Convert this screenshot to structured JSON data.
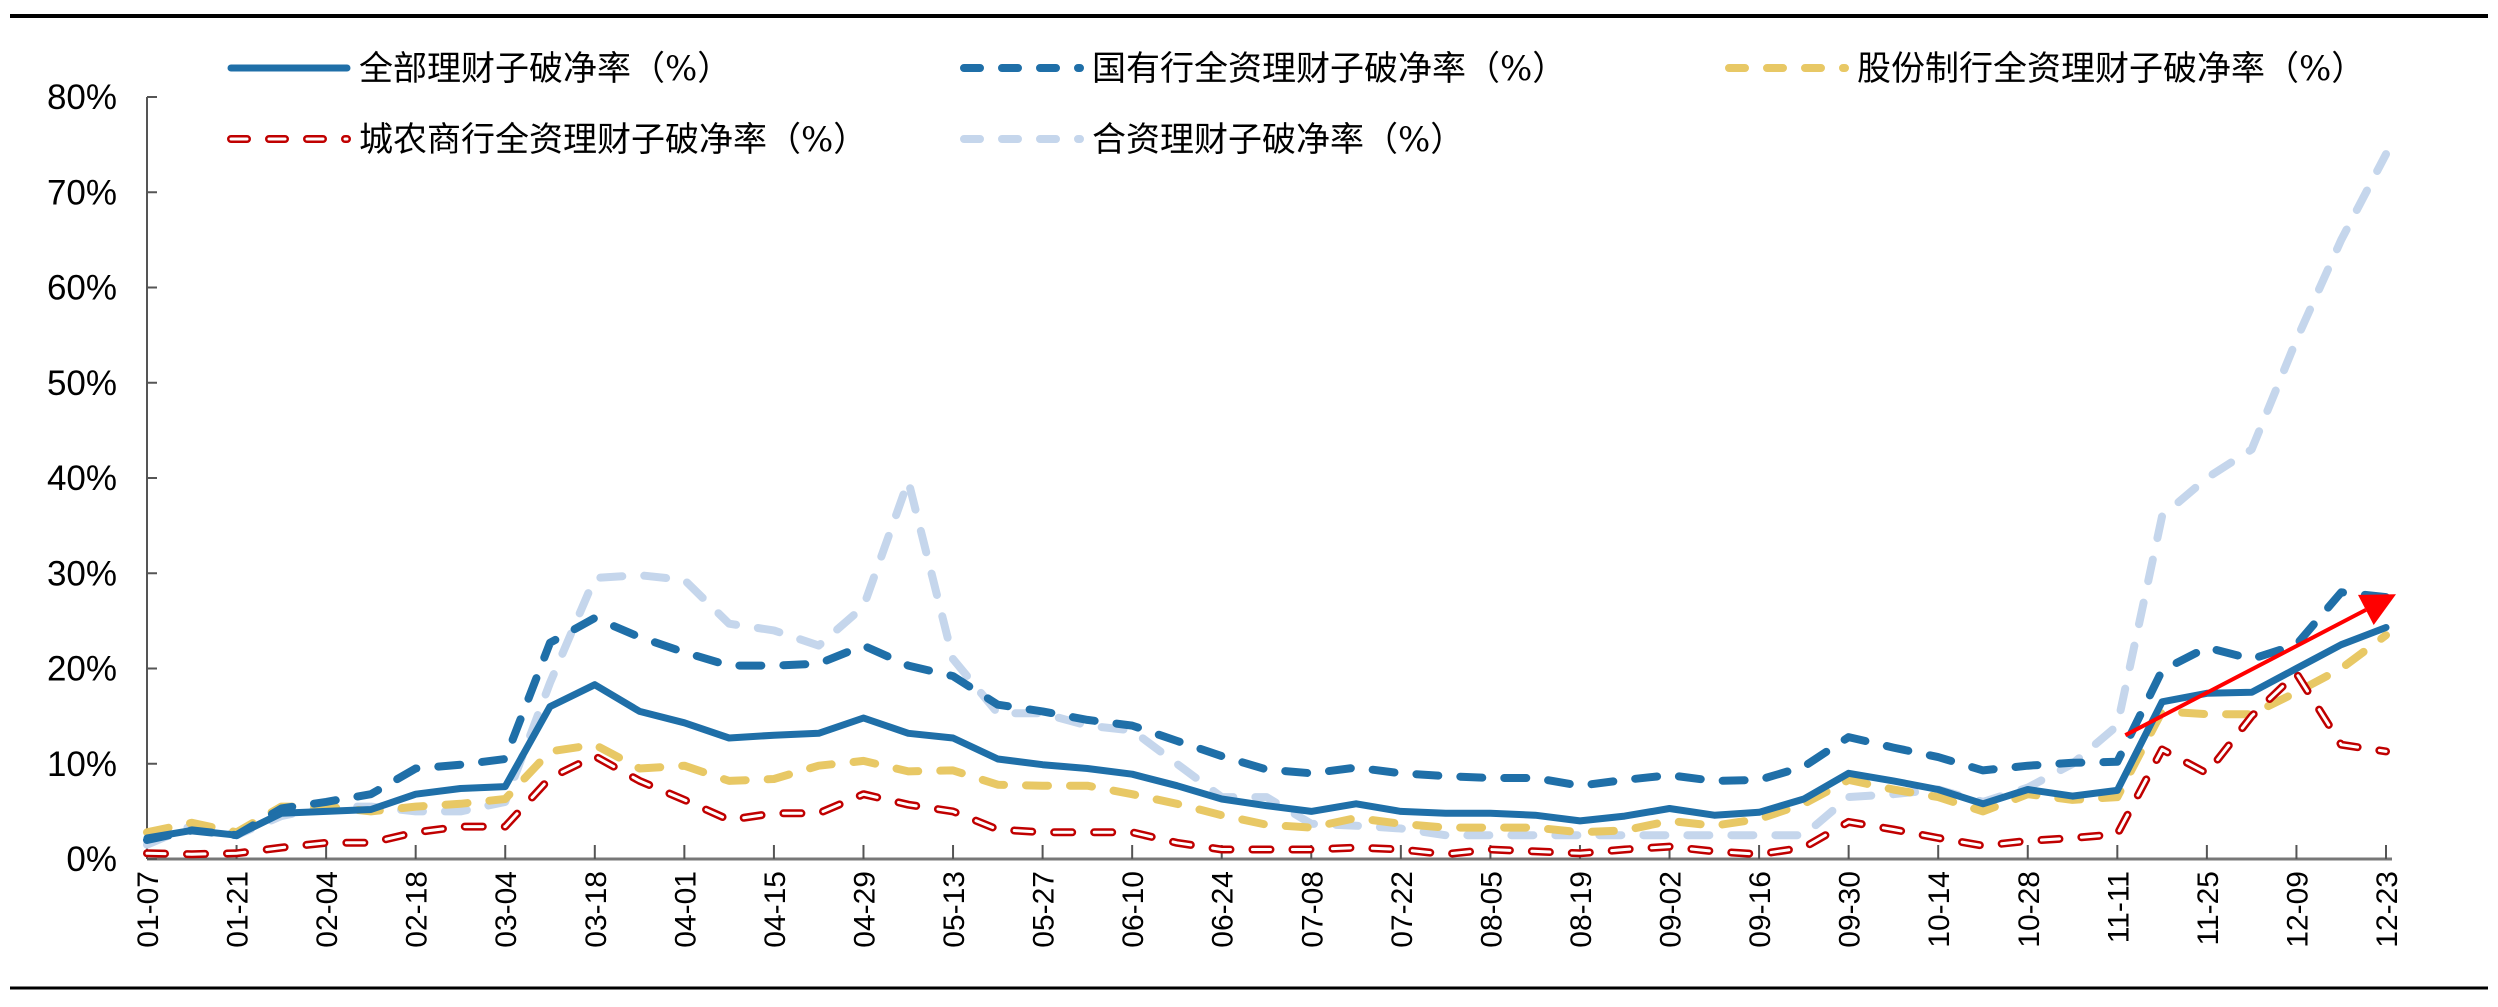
{
  "chart_data": {
    "type": "line",
    "title": "",
    "xlabel": "",
    "ylabel": "",
    "ylim": [
      0,
      80
    ],
    "y_ticks": [
      "0%",
      "10%",
      "20%",
      "30%",
      "40%",
      "50%",
      "60%",
      "70%",
      "80%"
    ],
    "grid": false,
    "legend_position": "top",
    "x": [
      "01-07",
      "01-14",
      "01-21",
      "01-28",
      "02-04",
      "02-11",
      "02-18",
      "02-25",
      "03-04",
      "03-11",
      "03-18",
      "03-25",
      "04-01",
      "04-08",
      "04-15",
      "04-22",
      "04-29",
      "05-06",
      "05-13",
      "05-20",
      "05-27",
      "06-03",
      "06-10",
      "06-17",
      "06-24",
      "07-01",
      "07-08",
      "07-15",
      "07-22",
      "07-29",
      "08-05",
      "08-12",
      "08-19",
      "08-26",
      "09-02",
      "09-09",
      "09-16",
      "09-23",
      "09-30",
      "10-07",
      "10-14",
      "10-21",
      "10-28",
      "11-04",
      "11-11",
      "11-18",
      "11-25",
      "12-02",
      "12-09",
      "12-16",
      "12-23"
    ],
    "x_tick_labels": [
      "01-07",
      "01-21",
      "02-04",
      "02-18",
      "03-04",
      "03-18",
      "04-01",
      "04-15",
      "04-29",
      "05-13",
      "05-27",
      "06-10",
      "06-24",
      "07-08",
      "07-22",
      "08-05",
      "08-19",
      "09-02",
      "09-16",
      "09-30",
      "10-14",
      "10-28",
      "11-11",
      "11-25",
      "12-09",
      "12-23"
    ],
    "series": [
      {
        "name": "全部理财子破净率（%）",
        "color": "#1F6FA8",
        "style": "solid",
        "values": [
          2.2,
          3.0,
          2.5,
          4.8,
          5.0,
          5.2,
          6.8,
          7.4,
          7.6,
          16.0,
          18.3,
          15.5,
          14.3,
          12.7,
          13.0,
          13.2,
          14.8,
          13.2,
          12.7,
          10.5,
          9.9,
          9.5,
          8.9,
          7.7,
          6.3,
          5.6,
          5.0,
          5.8,
          5.0,
          4.8,
          4.8,
          4.6,
          4.0,
          4.5,
          5.3,
          4.6,
          4.9,
          6.3,
          9.0,
          8.2,
          7.3,
          5.8,
          7.3,
          6.6,
          7.2,
          16.5,
          17.4,
          17.5,
          20.0,
          22.5,
          24.3
        ]
      },
      {
        "name": "国有行全资理财子破净率（%）",
        "color": "#1F6FA8",
        "style": "dashed",
        "values": [
          2.0,
          3.0,
          2.5,
          5.3,
          6.0,
          6.8,
          9.5,
          9.9,
          10.5,
          22.7,
          25.3,
          23.3,
          21.7,
          20.3,
          20.3,
          20.5,
          22.4,
          20.3,
          19.2,
          16.2,
          15.5,
          14.6,
          14.0,
          12.4,
          10.8,
          9.4,
          9.0,
          9.6,
          9.0,
          8.7,
          8.5,
          8.5,
          7.7,
          8.3,
          8.8,
          8.2,
          8.3,
          9.7,
          12.8,
          11.7,
          10.7,
          9.3,
          9.8,
          10.1,
          10.2,
          19.8,
          22.2,
          21.0,
          22.5,
          28.0,
          27.5
        ]
      },
      {
        "name": "股份制行全资理财子破净率（%）",
        "color": "#E8C865",
        "style": "dashed",
        "values": [
          2.8,
          3.8,
          2.8,
          5.5,
          5.5,
          5.0,
          5.5,
          5.8,
          6.3,
          11.3,
          12.0,
          9.5,
          9.8,
          8.2,
          8.4,
          9.8,
          10.3,
          9.2,
          9.3,
          7.8,
          7.7,
          7.7,
          6.8,
          5.8,
          4.6,
          3.6,
          3.3,
          4.3,
          3.7,
          3.3,
          3.3,
          3.3,
          2.8,
          3.0,
          4.0,
          3.5,
          4.2,
          5.8,
          8.3,
          7.3,
          6.5,
          5.0,
          6.8,
          6.2,
          6.5,
          15.5,
          15.2,
          15.2,
          17.5,
          20.0,
          23.5
        ]
      },
      {
        "name": "城农商行全资理财子破净率（%）",
        "color": "#C00000",
        "style": "outlined-dashed",
        "values": [
          0.6,
          0.5,
          0.6,
          1.2,
          1.7,
          1.7,
          2.8,
          3.4,
          3.4,
          8.5,
          10.8,
          8.2,
          6.2,
          4.1,
          4.8,
          4.8,
          6.8,
          5.7,
          5.0,
          3.1,
          2.8,
          2.8,
          2.8,
          1.7,
          1.0,
          1.0,
          1.0,
          1.2,
          1.0,
          0.5,
          1.0,
          0.8,
          0.6,
          1.0,
          1.3,
          0.8,
          0.5,
          1.2,
          3.9,
          3.1,
          2.2,
          1.4,
          1.9,
          2.2,
          2.6,
          11.5,
          9.0,
          15.0,
          19.5,
          12.0,
          11.3
        ]
      },
      {
        "name": "合资理财子破净率（%）",
        "color": "#C5D6EC",
        "style": "dashed",
        "values": [
          1.5,
          3.5,
          2.5,
          4.5,
          5.5,
          5.5,
          5.0,
          5.0,
          6.0,
          18.5,
          29.5,
          29.8,
          29.3,
          24.7,
          24.0,
          22.4,
          26.5,
          39.7,
          21.0,
          15.3,
          15.3,
          14.0,
          13.5,
          10.0,
          6.5,
          6.5,
          3.7,
          3.5,
          3.2,
          2.5,
          2.5,
          2.5,
          2.5,
          2.5,
          2.5,
          2.5,
          2.5,
          2.5,
          6.5,
          6.8,
          7.3,
          6.0,
          7.5,
          10.0,
          14.0,
          36.0,
          40.0,
          43.0,
          54.5,
          65.0,
          74.0
        ]
      }
    ],
    "annotations": [
      {
        "type": "arrow",
        "color": "#FF0000",
        "from": {
          "x": "11-11",
          "y": 13.0
        },
        "to": {
          "x": "12-23",
          "y": 27.8
        }
      }
    ]
  }
}
